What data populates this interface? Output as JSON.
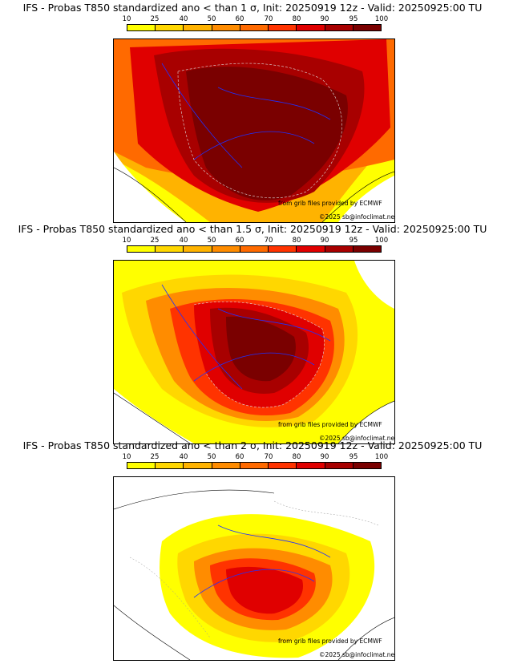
{
  "colors": {
    "c10": "#FFFF00",
    "c25": "#FFD700",
    "c40": "#FFB300",
    "c50": "#FF8C00",
    "c60": "#FF6A00",
    "c70": "#FF3300",
    "c80": "#E00000",
    "c90": "#A80000",
    "c95": "#7A0000",
    "c100": "#4A0000"
  },
  "legend": {
    "levels": [
      "10",
      "25",
      "40",
      "50",
      "60",
      "70",
      "80",
      "90",
      "95",
      "100"
    ]
  },
  "credit": "from grib files provided by ECMWF",
  "copyright": "©2025 sb@infoclimat.net",
  "panels": [
    {
      "title": "IFS - Probas T850  standardized ano < than 1 σ, Init: 20250919 12z - Valid: 20250925:00 TU"
    },
    {
      "title": "IFS - Probas T850  standardized ano < than 1.5 σ, Init: 20250919 12z - Valid: 20250925:00 TU"
    },
    {
      "title": "IFS - Probas T850  standardized ano < than 2 σ, Init: 20250919 12z - Valid: 20250925:00 TU"
    }
  ]
}
